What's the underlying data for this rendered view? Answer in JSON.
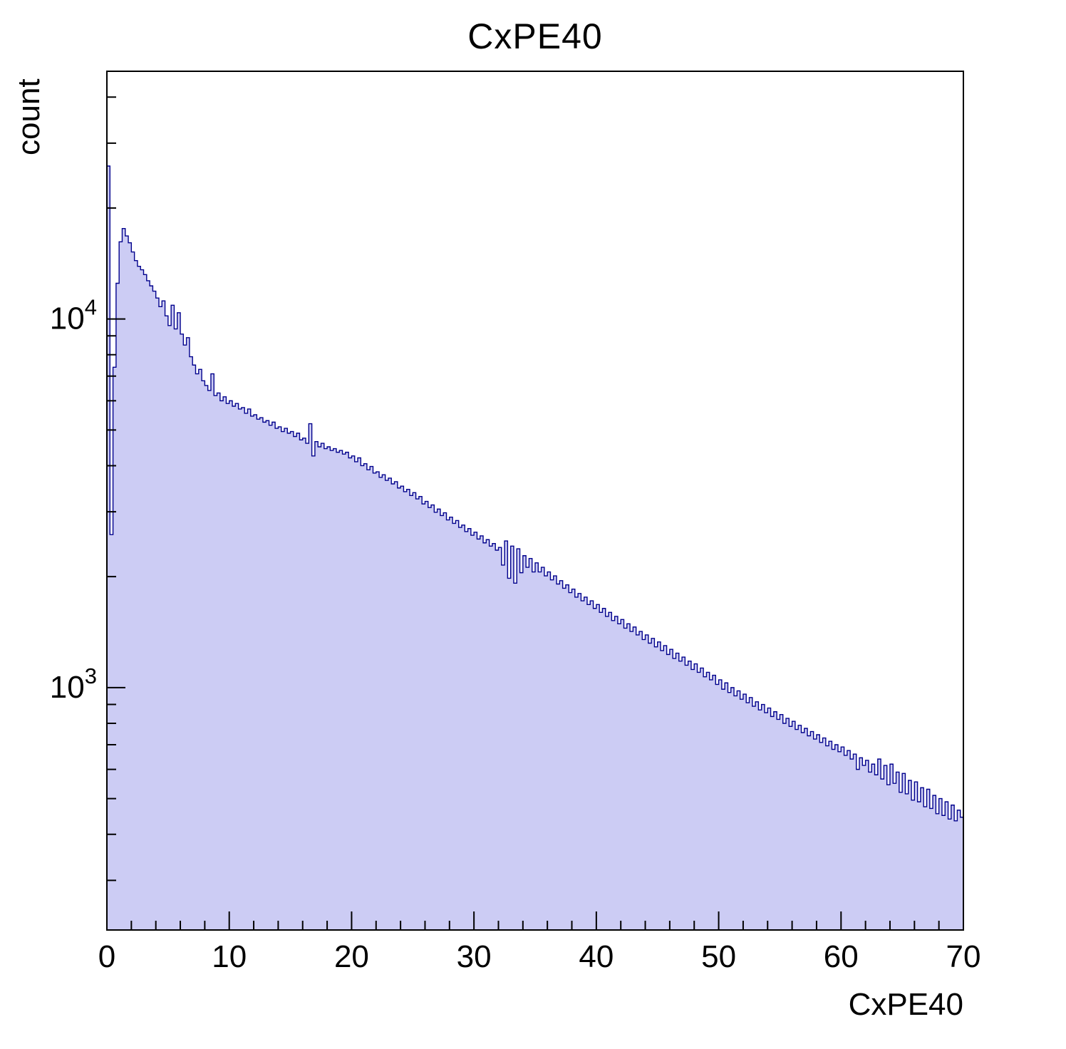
{
  "title": "CxPE40",
  "chart_data": {
    "type": "bar",
    "subtype": "histogram-log-y",
    "title": "CxPE40",
    "xlabel": "CxPE40",
    "ylabel": "count",
    "x_min": 0,
    "x_max": 70,
    "bin_width": 0.25,
    "y_scale": "log",
    "ylim": [
      220,
      47000
    ],
    "x_major_ticks": [
      0,
      10,
      20,
      30,
      40,
      50,
      60,
      70
    ],
    "x_minor_tick_step": 2,
    "y_major_tick_exponents": [
      3,
      4
    ],
    "grid": false,
    "legend": "none",
    "colors": {
      "fill": "#ccccf4",
      "line": "#00008c",
      "axis": "#000000"
    },
    "values": [
      26000,
      2600,
      7400,
      12500,
      16200,
      17600,
      16800,
      16100,
      15200,
      14400,
      13900,
      13600,
      13200,
      12700,
      12300,
      11900,
      11400,
      10800,
      11200,
      10200,
      9600,
      10900,
      9400,
      10400,
      9100,
      8500,
      8900,
      7900,
      7500,
      7100,
      7300,
      6800,
      6600,
      6400,
      7100,
      6200,
      6300,
      6000,
      6150,
      5900,
      6000,
      5800,
      5900,
      5700,
      5750,
      5550,
      5700,
      5450,
      5500,
      5350,
      5400,
      5250,
      5300,
      5150,
      5250,
      5050,
      5100,
      4950,
      5050,
      4900,
      4950,
      4800,
      4900,
      4700,
      4750,
      4600,
      5200,
      4250,
      4650,
      4500,
      4600,
      4450,
      4500,
      4400,
      4450,
      4350,
      4400,
      4300,
      4350,
      4200,
      4250,
      4100,
      4200,
      4000,
      4050,
      3900,
      3980,
      3820,
      3850,
      3720,
      3780,
      3650,
      3700,
      3570,
      3620,
      3480,
      3520,
      3400,
      3450,
      3320,
      3380,
      3250,
      3300,
      3150,
      3200,
      3080,
      3130,
      2990,
      3050,
      2930,
      2980,
      2850,
      2900,
      2790,
      2840,
      2720,
      2760,
      2650,
      2700,
      2590,
      2640,
      2530,
      2580,
      2470,
      2520,
      2420,
      2460,
      2360,
      2400,
      2150,
      2500,
      1980,
      2420,
      1920,
      2380,
      2050,
      2280,
      2120,
      2240,
      2060,
      2180,
      2060,
      2120,
      2010,
      2060,
      1960,
      2010,
      1910,
      1950,
      1860,
      1900,
      1810,
      1850,
      1760,
      1800,
      1720,
      1760,
      1680,
      1720,
      1640,
      1680,
      1600,
      1640,
      1560,
      1600,
      1520,
      1560,
      1490,
      1530,
      1450,
      1490,
      1420,
      1460,
      1390,
      1420,
      1350,
      1390,
      1320,
      1360,
      1290,
      1330,
      1260,
      1300,
      1230,
      1270,
      1200,
      1240,
      1180,
      1210,
      1150,
      1180,
      1120,
      1160,
      1100,
      1130,
      1070,
      1100,
      1050,
      1080,
      1020,
      1050,
      990,
      1030,
      970,
      1000,
      950,
      980,
      930,
      960,
      910,
      940,
      890,
      915,
      870,
      900,
      855,
      880,
      835,
      860,
      820,
      845,
      800,
      825,
      785,
      810,
      770,
      790,
      755,
      775,
      740,
      760,
      725,
      745,
      710,
      730,
      695,
      715,
      680,
      700,
      670,
      690,
      655,
      675,
      640,
      660,
      600,
      645,
      615,
      635,
      590,
      620,
      580,
      640,
      565,
      615,
      545,
      620,
      550,
      590,
      520,
      585,
      515,
      560,
      495,
      555,
      490,
      535,
      475,
      530,
      470,
      510,
      455,
      500,
      450,
      490,
      440,
      480,
      435,
      465,
      445
    ]
  }
}
